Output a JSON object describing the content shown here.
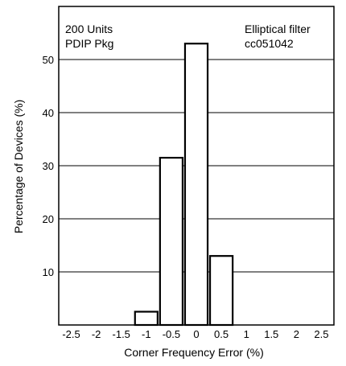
{
  "chart_data": {
    "type": "bar",
    "title": "",
    "xlabel": "Corner Frequency Error (%)",
    "ylabel": "Percentage of Devices (%)",
    "xlim": [
      -2.75,
      2.75
    ],
    "ylim": [
      0,
      60
    ],
    "x_ticks": [
      "-2.5",
      "-2",
      "-1.5",
      "-1",
      "-0.5",
      "0",
      "0.5",
      "1",
      "1.5",
      "2",
      "2.5"
    ],
    "x_tick_values": [
      -2.5,
      -2,
      -1.5,
      -1,
      -0.5,
      0,
      0.5,
      1,
      1.5,
      2,
      2.5
    ],
    "y_ticks": [
      "10",
      "20",
      "30",
      "40",
      "50"
    ],
    "y_tick_values": [
      10,
      20,
      30,
      40,
      50
    ],
    "grid": "horizontal",
    "bars": [
      {
        "x": -1.0,
        "value": 2.5
      },
      {
        "x": -0.5,
        "value": 31.5
      },
      {
        "x": 0.0,
        "value": 53
      },
      {
        "x": 0.5,
        "value": 13
      }
    ],
    "bar_width": 0.5,
    "annotations": {
      "left_line1": "200 Units",
      "left_line2": "PDIP Pkg",
      "right_line1": "Elliptical filter",
      "right_line2": "cc051042"
    },
    "colors": {
      "bar_fill": "#ffffff",
      "bar_stroke": "#000000",
      "grid": "#000000"
    }
  }
}
